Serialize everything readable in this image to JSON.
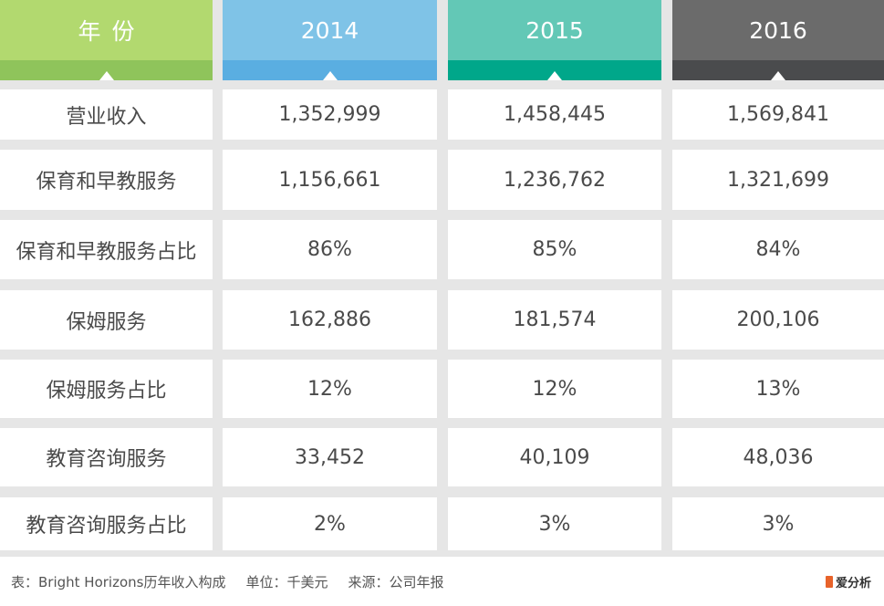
{
  "header": {
    "label": "年份",
    "years": [
      "2014",
      "2015",
      "2016"
    ]
  },
  "rows": [
    {
      "label": "营业收入",
      "values": [
        "1,352,999",
        "1,458,445",
        "1,569,841"
      ]
    },
    {
      "label": "保育和早教服务",
      "values": [
        "1,156,661",
        "1,236,762",
        "1,321,699"
      ]
    },
    {
      "label": "保育和早教服务占比",
      "values": [
        "86%",
        "85%",
        "84%"
      ]
    },
    {
      "label": "保姆服务",
      "values": [
        "162,886",
        "181,574",
        "200,106"
      ]
    },
    {
      "label": "保姆服务占比",
      "values": [
        "12%",
        "12%",
        "13%"
      ]
    },
    {
      "label": "教育咨询服务",
      "values": [
        "33,452",
        "40,109",
        "48,036"
      ]
    },
    {
      "label": "教育咨询服务占比",
      "values": [
        "2%",
        "3%",
        "3%"
      ]
    }
  ],
  "footer": {
    "table_caption": "表：Bright Horizons历年收入构成",
    "unit": "单位：千美元",
    "source": "来源：公司年报",
    "logo_text": "爱分析"
  },
  "colors": {
    "header_label_top": "#b2d96f",
    "header_label_bottom": "#8fc45b",
    "header_2014_top": "#7fc3e7",
    "header_2014_bottom": "#5aaee1",
    "header_2015_top": "#63c8b6",
    "header_2015_bottom": "#00a78a",
    "header_2016_top": "#6b6b6b",
    "header_2016_bottom": "#4a4b4d",
    "logo": "#e8632a"
  }
}
